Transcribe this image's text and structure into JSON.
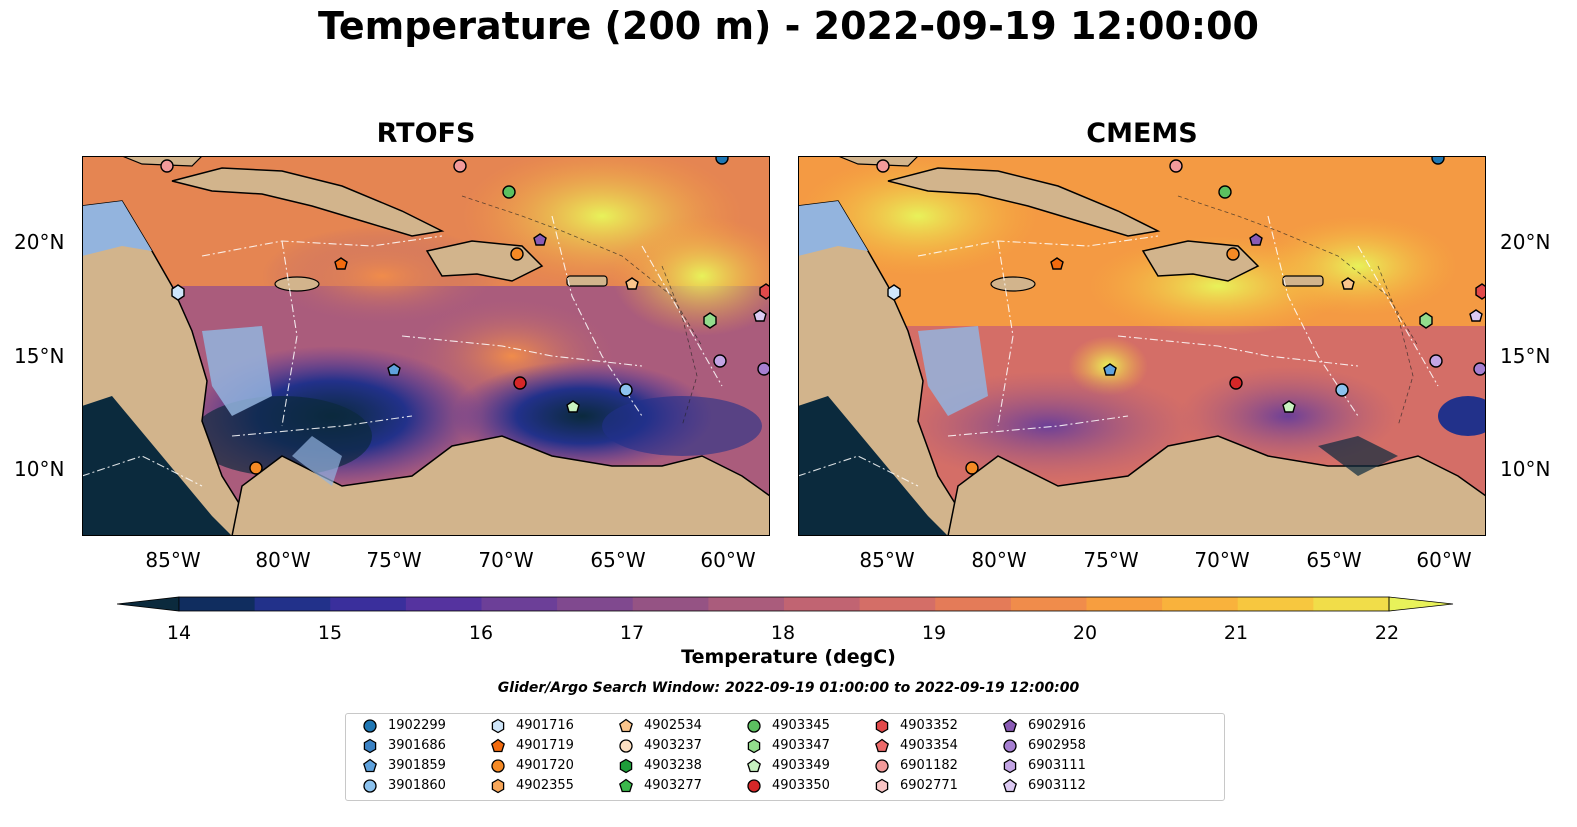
{
  "title": "Temperature (200 m) - 2022-09-19 12:00:00",
  "panels": [
    {
      "title": "RTOFS"
    },
    {
      "title": "CMEMS"
    }
  ],
  "lat_labels": [
    "20°N",
    "15°N",
    "10°N"
  ],
  "lon_labels": [
    "85°W",
    "80°W",
    "75°W",
    "70°W",
    "65°W",
    "60°W"
  ],
  "colorbar": {
    "label": "Temperature (degC)",
    "ticks": [
      "14",
      "15",
      "16",
      "17",
      "18",
      "19",
      "20",
      "21",
      "22"
    ],
    "range": [
      14,
      22
    ],
    "colormap": "thermal",
    "colors": [
      "#0b2a3d",
      "#102d5f",
      "#22318a",
      "#3a2f9c",
      "#55339f",
      "#6c3f98",
      "#80498f",
      "#955384",
      "#aa5c7c",
      "#c16472",
      "#d46e67",
      "#e47b58",
      "#f08c4b",
      "#f79e3f",
      "#f9b23c",
      "#f7c73f",
      "#f1dd49",
      "#e8f25a"
    ]
  },
  "search_window": "Glider/Argo Search Window: 2022-09-19 01:00:00 to 2022-09-19 12:00:00",
  "legend": {
    "items": [
      {
        "label": "1902299",
        "marker": "circle",
        "color": "#1f77b4"
      },
      {
        "label": "3901686",
        "marker": "hexagon",
        "color": "#3b82c4"
      },
      {
        "label": "3901859",
        "marker": "pentagon",
        "color": "#5fa2dd"
      },
      {
        "label": "3901860",
        "marker": "circle",
        "color": "#8cc2ee"
      },
      {
        "label": "4901716",
        "marker": "hexagon",
        "color": "#cfe6fa"
      },
      {
        "label": "4901719",
        "marker": "pentagon",
        "color": "#f26b0f"
      },
      {
        "label": "4901720",
        "marker": "circle",
        "color": "#f58a25"
      },
      {
        "label": "4902355",
        "marker": "hexagon",
        "color": "#f8a75a"
      },
      {
        "label": "4902534",
        "marker": "pentagon",
        "color": "#fbc58c"
      },
      {
        "label": "4903237",
        "marker": "circle",
        "color": "#fde0c2"
      },
      {
        "label": "4903238",
        "marker": "hexagon",
        "color": "#1f9e3a"
      },
      {
        "label": "4903277",
        "marker": "pentagon",
        "color": "#3cb84c"
      },
      {
        "label": "4903345",
        "marker": "circle",
        "color": "#5cc060"
      },
      {
        "label": "4903347",
        "marker": "hexagon",
        "color": "#93dc8c"
      },
      {
        "label": "4903349",
        "marker": "pentagon",
        "color": "#c8f2c0"
      },
      {
        "label": "4903350",
        "marker": "circle",
        "color": "#d62728"
      },
      {
        "label": "4903352",
        "marker": "hexagon",
        "color": "#e2494a"
      },
      {
        "label": "4903354",
        "marker": "pentagon",
        "color": "#ec6a6a"
      },
      {
        "label": "6901182",
        "marker": "circle",
        "color": "#f29a9a"
      },
      {
        "label": "6902771",
        "marker": "hexagon",
        "color": "#f8c4c4"
      },
      {
        "label": "6902916",
        "marker": "pentagon",
        "color": "#8a5bb5"
      },
      {
        "label": "6902958",
        "marker": "circle",
        "color": "#a67fd1"
      },
      {
        "label": "6903111",
        "marker": "hexagon",
        "color": "#c3a5e4"
      },
      {
        "label": "6903112",
        "marker": "pentagon",
        "color": "#dccaf2"
      }
    ]
  },
  "map": {
    "land_color": "#d2b48c",
    "shelf_color": "#93b4de",
    "extent_lon": [
      -89,
      -58
    ],
    "extent_lat": [
      7,
      24
    ]
  }
}
